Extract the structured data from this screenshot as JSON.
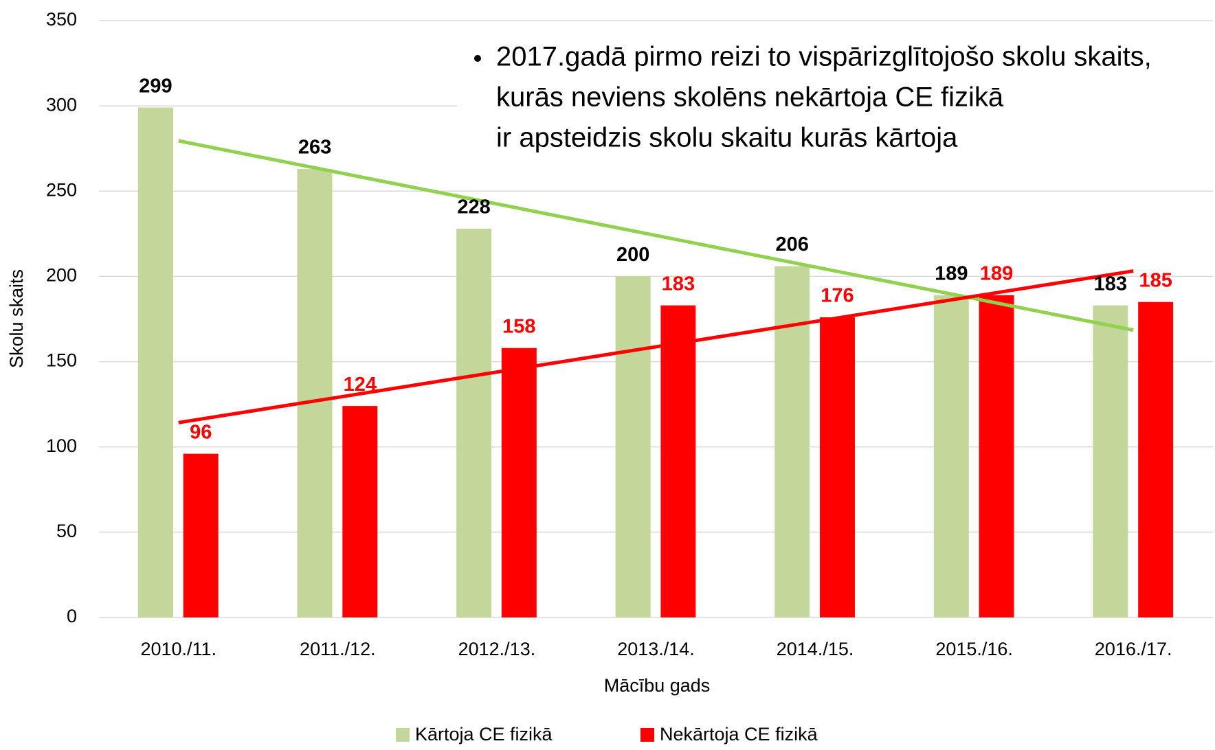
{
  "chart_data": {
    "type": "bar",
    "annotation": [
      "2017.gadā pirmo reizi to vispārizglītojošo skolu skaits,",
      "kurās neviens skolēns nekārtoja CE fizikā",
      "ir apsteidzis skolu skaitu kurās kārtoja"
    ],
    "x_label": "Mācību gads",
    "y_label": "Skolu skaits",
    "categories": [
      "2010./11.",
      "2011./12.",
      "2012./13.",
      "2013./14.",
      "2014./15.",
      "2015./16.",
      "2016./17."
    ],
    "series": [
      {
        "name": "Kārtoja CE fizikā",
        "color": "#c4d79b",
        "trend_color": "#92d050",
        "label_color": "#000000",
        "values": [
          299,
          263,
          228,
          200,
          206,
          189,
          183
        ]
      },
      {
        "name": "Nekārtoja CE fizikā",
        "color": "#ff0000",
        "trend_color": "#ff0000",
        "label_color": "#ff0000",
        "values": [
          96,
          124,
          158,
          183,
          176,
          189,
          185
        ]
      }
    ],
    "trendline": "linear",
    "ylim": [
      0,
      350
    ],
    "yticks": [
      0,
      50,
      100,
      150,
      200,
      250,
      300,
      350
    ],
    "grid": true,
    "legend": "bottom"
  }
}
